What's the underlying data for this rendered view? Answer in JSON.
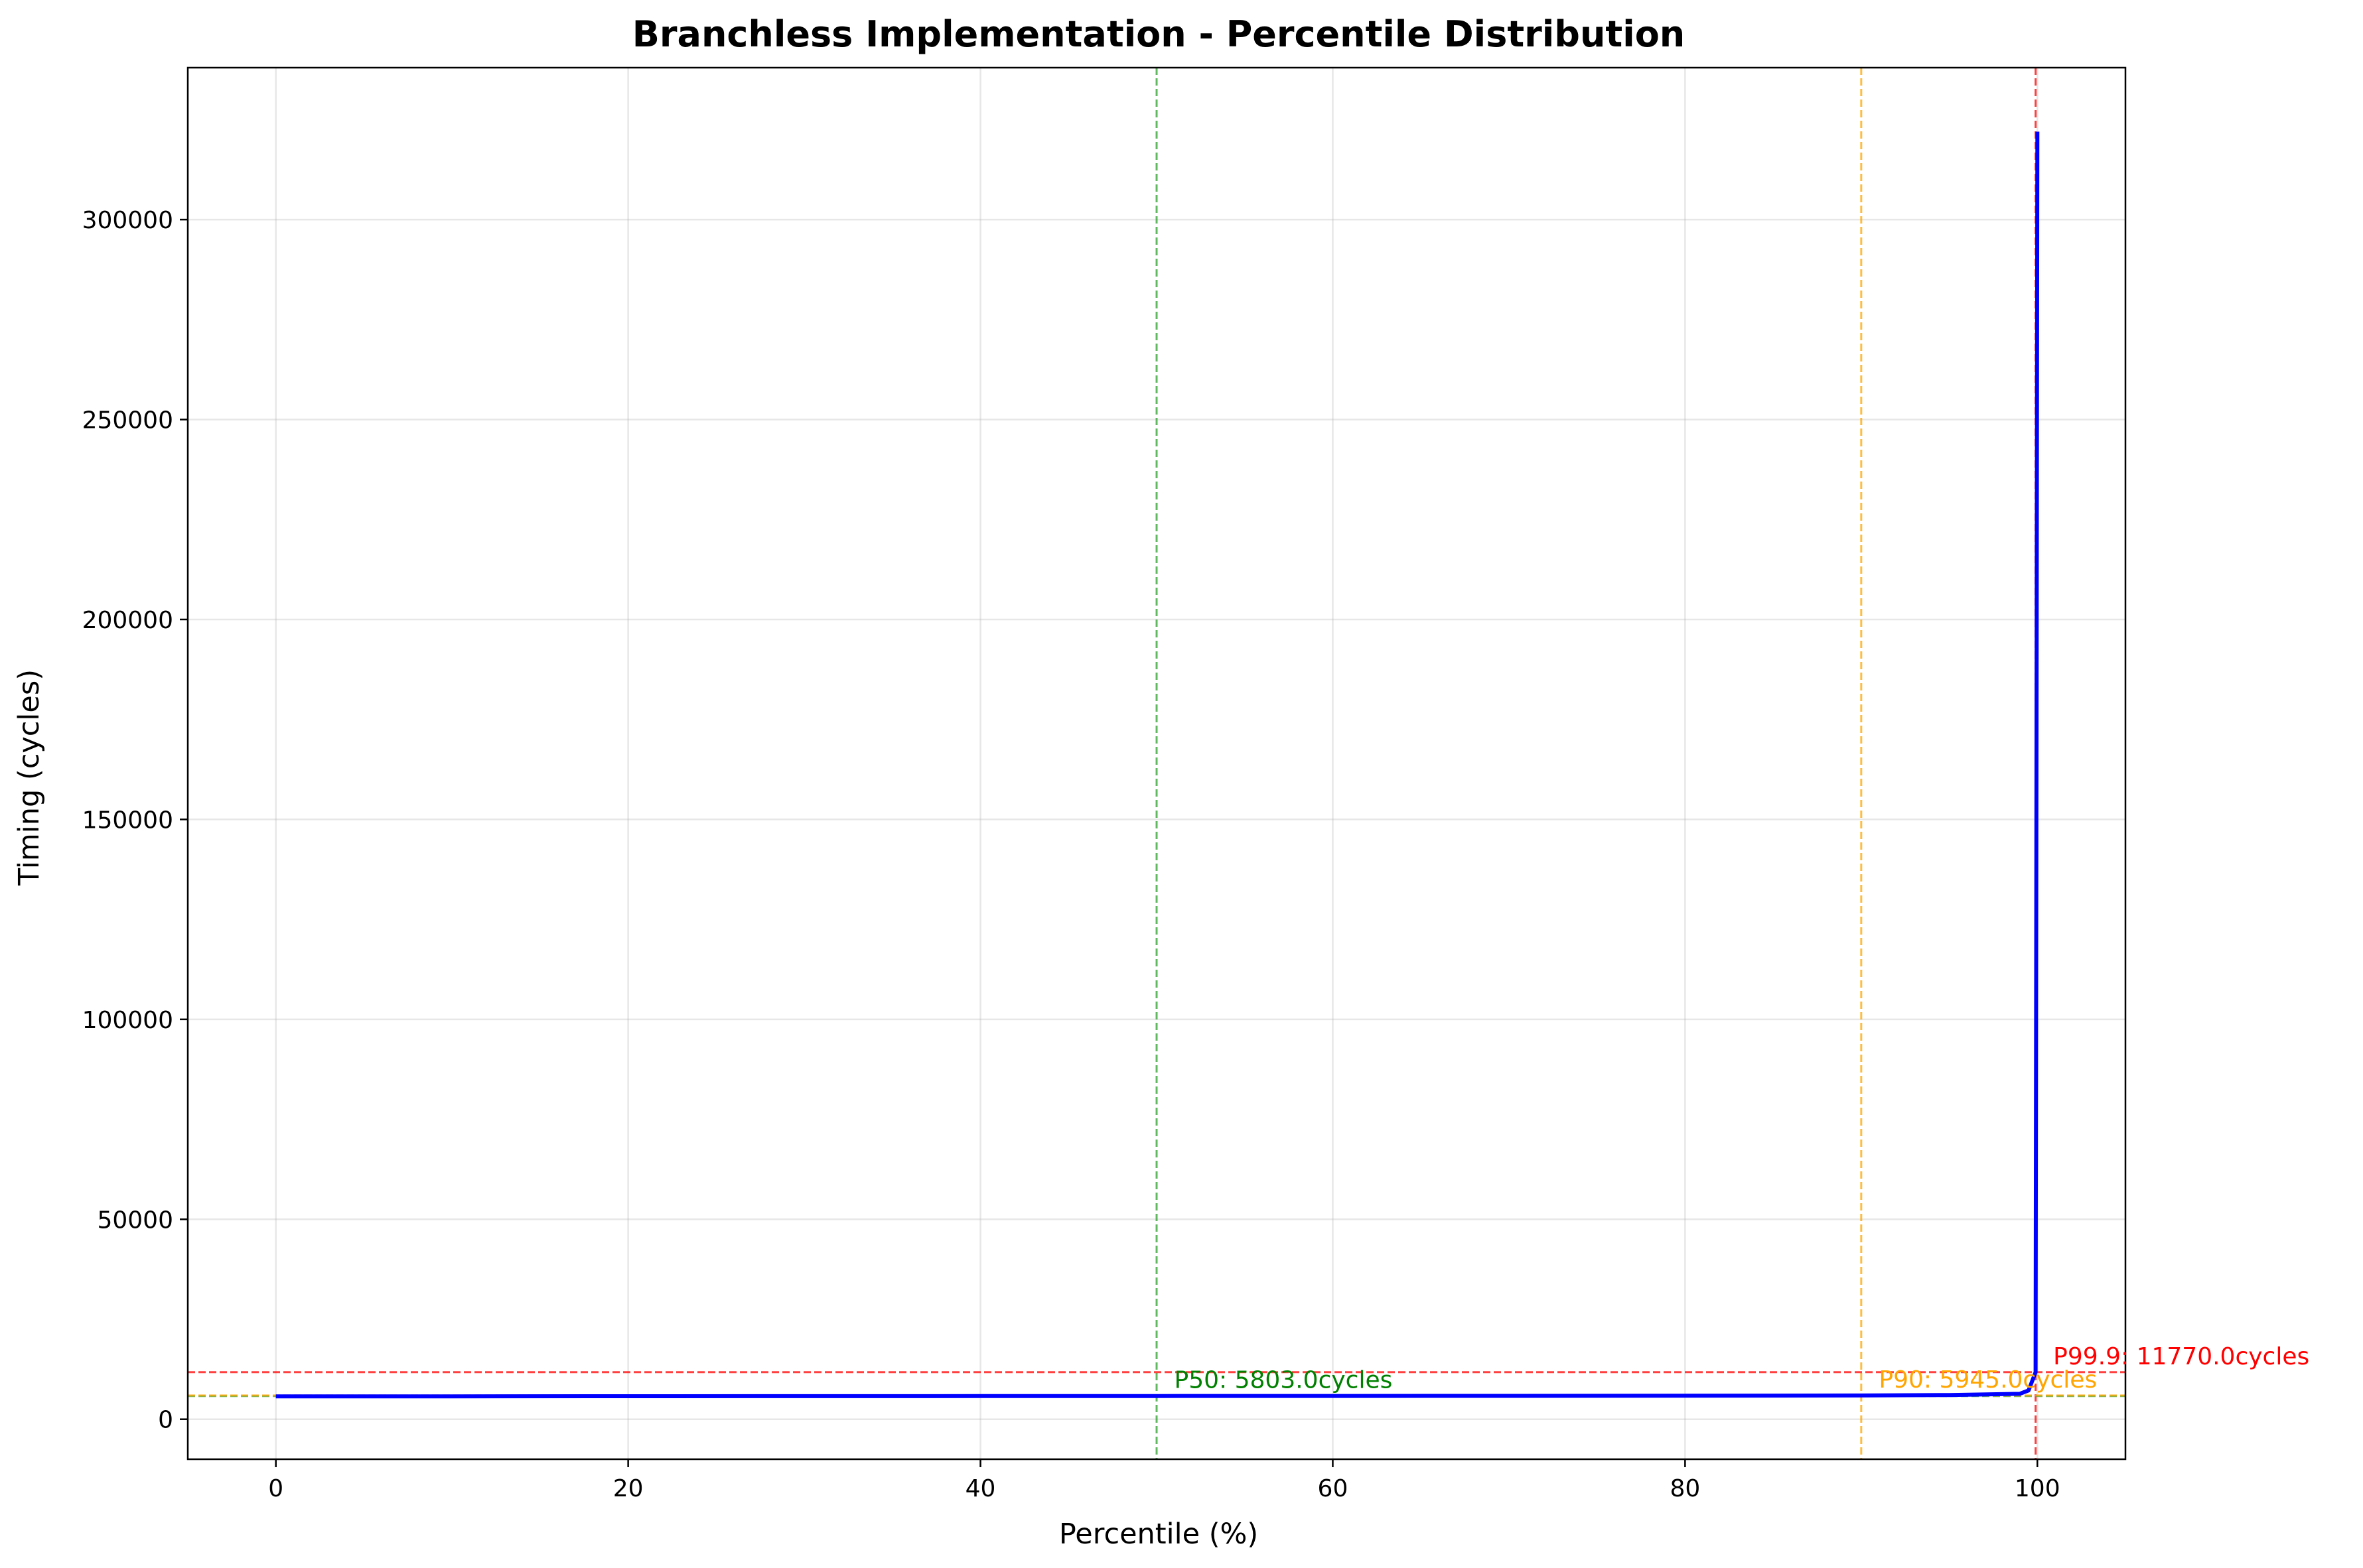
{
  "chart_data": {
    "type": "line",
    "title": "Branchless Implementation - Percentile Distribution",
    "xlabel": "Percentile (%)",
    "ylabel": "Timing (cycles)",
    "xlim": [
      -5,
      105
    ],
    "ylim": [
      -10000,
      338000
    ],
    "x_ticks": [
      0,
      20,
      40,
      60,
      80,
      100
    ],
    "x_tick_labels": [
      "0",
      "20",
      "40",
      "60",
      "80",
      "100"
    ],
    "y_ticks": [
      0,
      50000,
      100000,
      150000,
      200000,
      250000,
      300000
    ],
    "y_tick_labels": [
      "0",
      "50000",
      "100000",
      "150000",
      "200000",
      "250000",
      "300000"
    ],
    "grid": true,
    "series": [
      {
        "color": "#0000ff",
        "x": [
          0,
          10,
          20,
          30,
          40,
          50,
          60,
          70,
          80,
          90,
          95,
          99,
          99.5,
          99.9,
          100
        ],
        "y": [
          5700,
          5730,
          5750,
          5770,
          5790,
          5803,
          5820,
          5845,
          5880,
          5945,
          6050,
          6350,
          7200,
          11770,
          322000
        ]
      }
    ],
    "reference_lines": {
      "vertical": [
        {
          "x": 50,
          "color": "#2ca02c"
        },
        {
          "x": 90,
          "color": "#ffa500"
        },
        {
          "x": 99.9,
          "color": "#ff0000"
        }
      ],
      "horizontal": [
        {
          "y": 5803,
          "color": "#2ca02c"
        },
        {
          "y": 5945,
          "color": "#ffa500"
        },
        {
          "y": 11770,
          "color": "#ff0000"
        }
      ]
    },
    "annotations": [
      {
        "text": "P50: 5803.0cycles",
        "x": 51,
        "y": 5803,
        "color": "#008000"
      },
      {
        "text": "P90: 5945.0cycles",
        "x": 91,
        "y": 5945,
        "color": "#ffa500"
      },
      {
        "text": "P99.9: 11770.0cycles",
        "x": 100.9,
        "y": 11770,
        "color": "#ff0000"
      }
    ]
  }
}
